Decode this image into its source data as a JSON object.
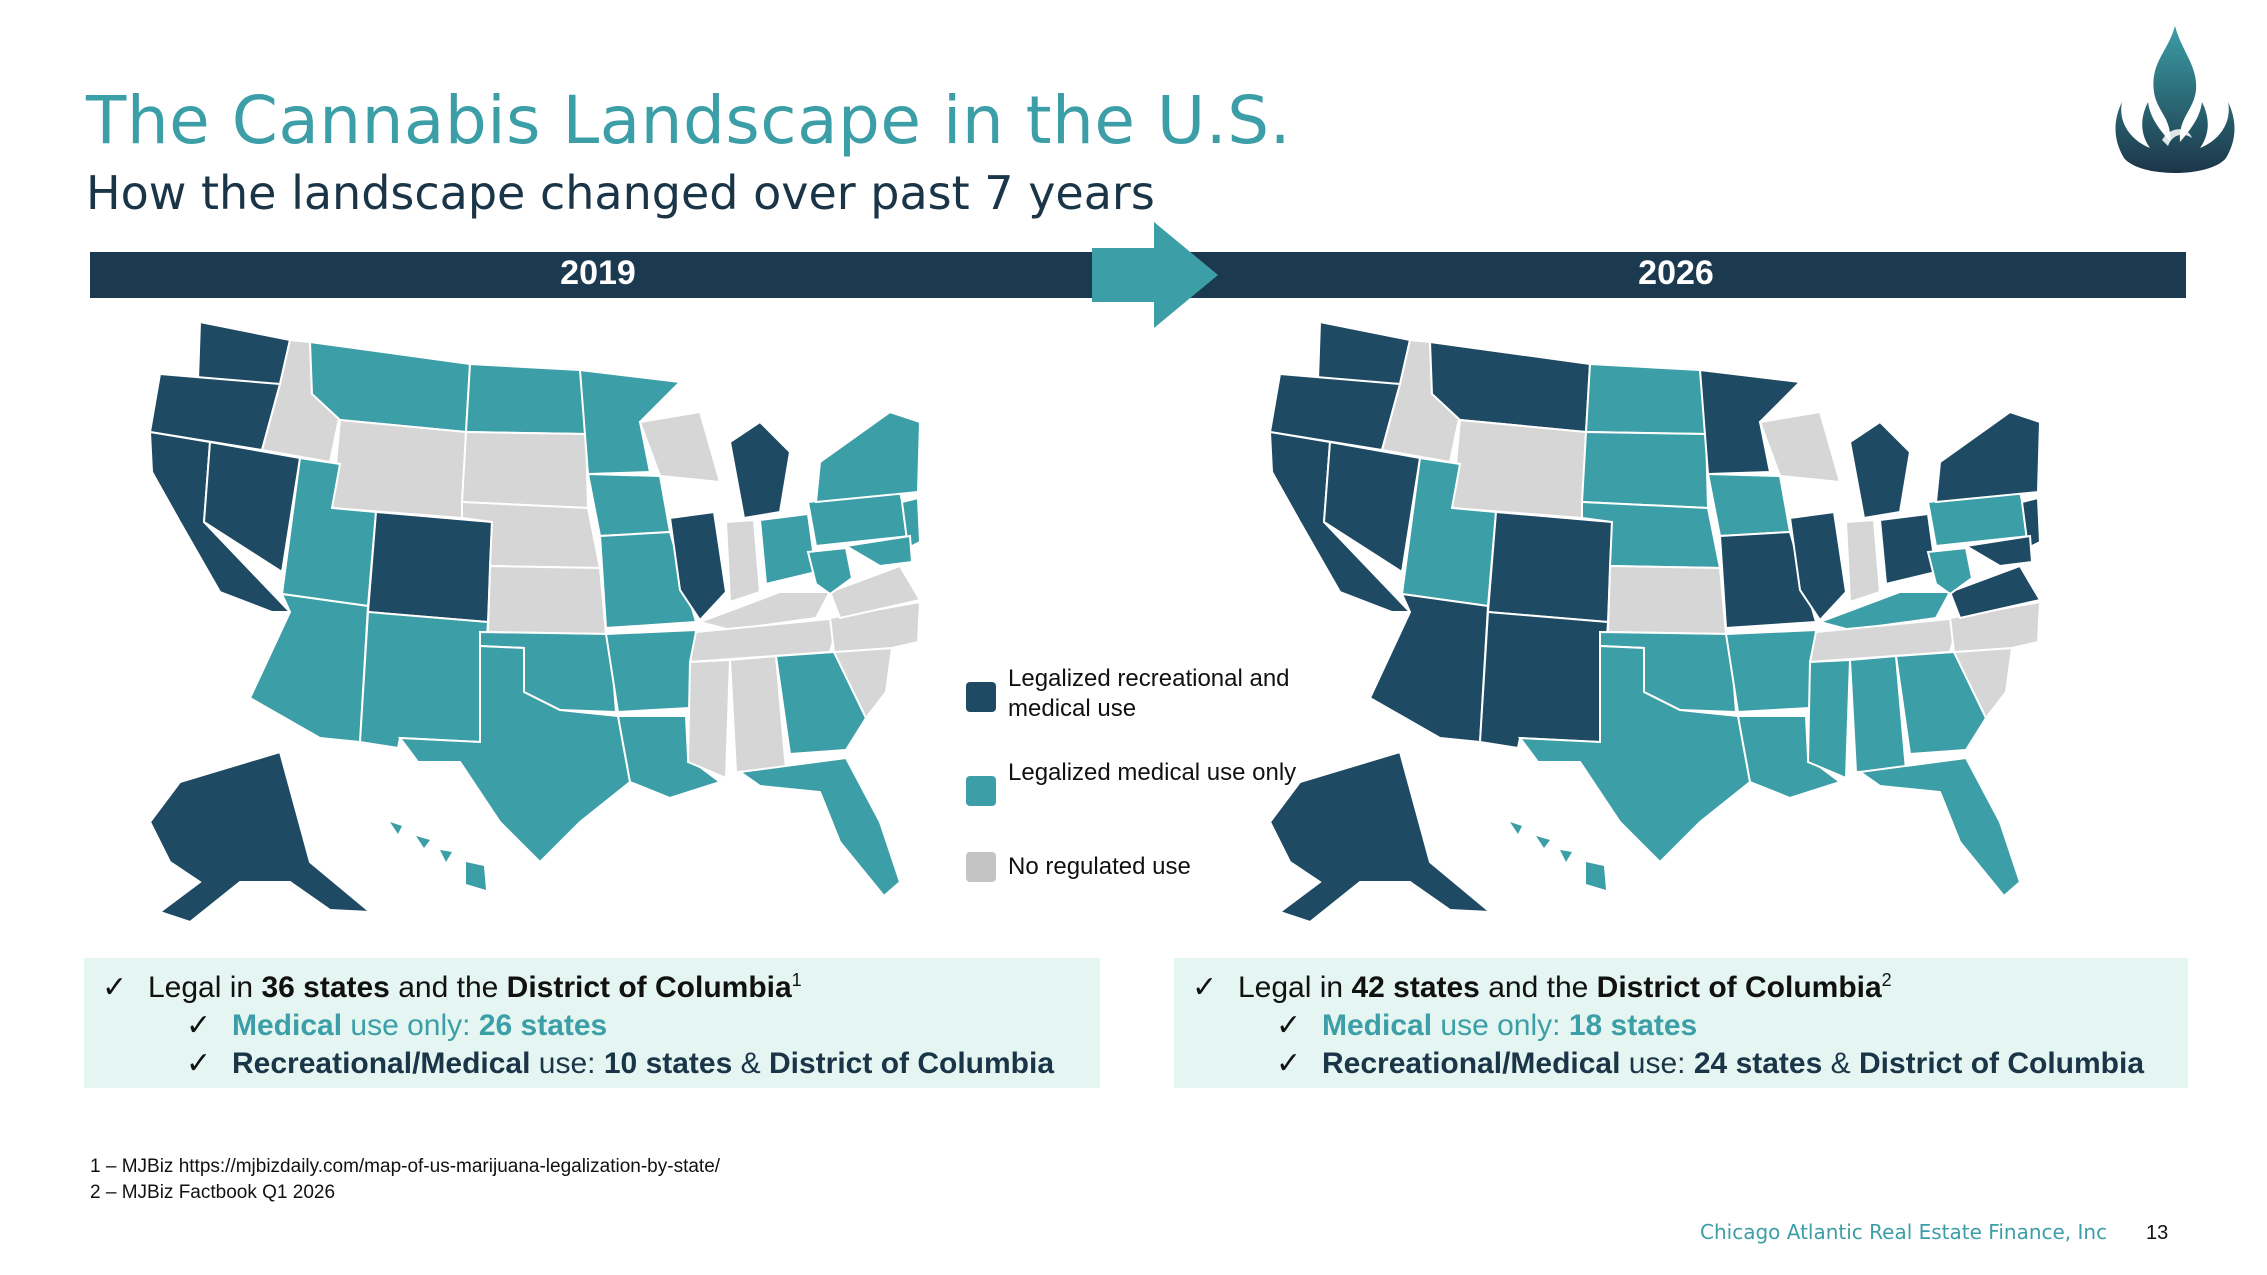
{
  "slide": {
    "title": "The Cannabis Landscape in the U.S.",
    "subtitle": "How the landscape changed over past 7 years"
  },
  "timeline": {
    "from_label": "2019",
    "to_label": "2026"
  },
  "colors": {
    "recreational": "#1f4a63",
    "medical": "#3c9ea6",
    "none": "#d6d6d6",
    "bar": "#1b3a4f",
    "arrow": "#3c9ea6",
    "summary_bg": "#e4f5f2"
  },
  "legend": {
    "items": [
      {
        "label": "Legalized recreational and medical use",
        "color": "#1f4a63"
      },
      {
        "label": "Legalized medical use only",
        "color": "#3c9ea6"
      },
      {
        "label": "No regulated use",
        "color": "#c4c4c4"
      }
    ]
  },
  "summary_2019": {
    "prefix": "Legal in",
    "states": "36 states",
    "and_the": "and the",
    "district": "District of Columbia",
    "sup": "1",
    "medical_label": "Medical",
    "medical_mid": "use only:",
    "medical_value": "26 states",
    "rec_label": "Recreational/Medical",
    "rec_mid": "use:",
    "rec_value": "10 states",
    "rec_amp": "&",
    "rec_district": "District of Columbia"
  },
  "summary_2026": {
    "prefix": "Legal in",
    "states": "42 states",
    "and_the": "and the",
    "district": "District of Columbia",
    "sup": "2",
    "medical_label": "Medical",
    "medical_mid": "use only:",
    "medical_value": "18 states",
    "rec_label": "Recreational/Medical",
    "rec_mid": "use:",
    "rec_value": "24 states",
    "rec_amp": "&",
    "rec_district": "District of Columbia"
  },
  "footnotes": {
    "fn1": "1 – MJBiz https://mjbizdaily.com/map-of-us-marijuana-legalization-by-state/",
    "fn2": "2 – MJBiz Factbook Q1 2026"
  },
  "footer": {
    "company": "Chicago Atlantic Real Estate Finance, Inc",
    "page": "13"
  },
  "icons": {
    "logo": "flame-logo-icon",
    "arrow": "arrow-right-icon",
    "check": "check-mark-icon"
  }
}
